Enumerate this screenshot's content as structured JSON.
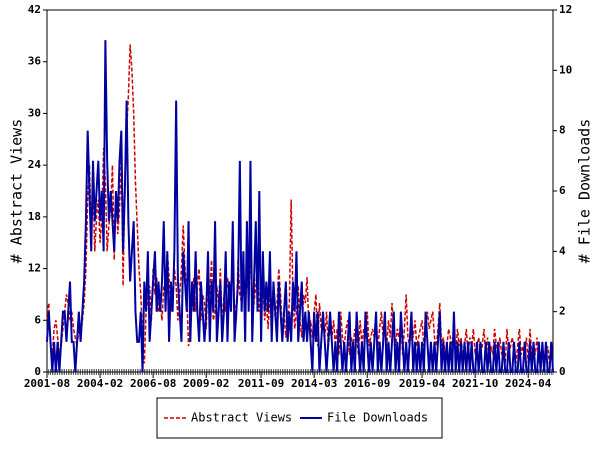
{
  "chart_data": {
    "type": "line",
    "x": [
      "2001-08",
      "2001-09",
      "2001-10",
      "2001-11",
      "2001-12",
      "2002-01",
      "2002-02",
      "2002-03",
      "2002-04",
      "2002-05",
      "2002-06",
      "2002-07",
      "2002-08",
      "2002-09",
      "2002-10",
      "2002-11",
      "2002-12",
      "2003-01",
      "2003-02",
      "2003-03",
      "2003-04",
      "2003-05",
      "2003-06",
      "2003-07",
      "2003-08",
      "2003-09",
      "2003-10",
      "2003-11",
      "2003-12",
      "2004-01",
      "2004-02",
      "2004-03",
      "2004-04",
      "2004-05",
      "2004-06",
      "2004-07",
      "2004-08",
      "2004-09",
      "2004-10",
      "2004-11",
      "2004-12",
      "2005-01",
      "2005-02",
      "2005-03",
      "2005-04",
      "2005-05",
      "2005-06",
      "2005-07",
      "2005-08",
      "2005-09",
      "2005-10",
      "2005-11",
      "2005-12",
      "2006-01",
      "2006-02",
      "2006-03",
      "2006-04",
      "2006-05",
      "2006-06",
      "2006-07",
      "2006-08",
      "2006-09",
      "2006-10",
      "2006-11",
      "2006-12",
      "2007-01",
      "2007-02",
      "2007-03",
      "2007-04",
      "2007-05",
      "2007-06",
      "2007-07",
      "2007-08",
      "2007-09",
      "2007-10",
      "2007-11",
      "2007-12",
      "2008-01",
      "2008-02",
      "2008-03",
      "2008-04",
      "2008-05",
      "2008-06",
      "2008-07",
      "2008-08",
      "2008-09",
      "2008-10",
      "2008-11",
      "2008-12",
      "2009-01",
      "2009-02",
      "2009-03",
      "2009-04",
      "2009-05",
      "2009-06",
      "2009-07",
      "2009-08",
      "2009-09",
      "2009-10",
      "2009-11",
      "2009-12",
      "2010-01",
      "2010-02",
      "2010-03",
      "2010-04",
      "2010-05",
      "2010-06",
      "2010-07",
      "2010-08",
      "2010-09",
      "2010-10",
      "2010-11",
      "2010-12",
      "2011-01",
      "2011-02",
      "2011-03",
      "2011-04",
      "2011-05",
      "2011-06",
      "2011-07",
      "2011-08",
      "2011-09",
      "2011-10",
      "2011-11",
      "2011-12",
      "2012-01",
      "2012-02",
      "2012-03",
      "2012-04",
      "2012-05",
      "2012-06",
      "2012-07",
      "2012-08",
      "2012-09",
      "2012-10",
      "2012-11",
      "2012-12",
      "2013-01",
      "2013-02",
      "2013-03",
      "2013-04",
      "2013-05",
      "2013-06",
      "2013-07",
      "2013-08",
      "2013-09",
      "2013-10",
      "2013-11",
      "2013-12",
      "2014-01",
      "2014-02",
      "2014-03",
      "2014-04",
      "2014-05",
      "2014-06",
      "2014-07",
      "2014-08",
      "2014-09",
      "2014-10",
      "2014-11",
      "2014-12",
      "2015-01",
      "2015-02",
      "2015-03",
      "2015-04",
      "2015-05",
      "2015-06",
      "2015-07",
      "2015-08",
      "2015-09",
      "2015-10",
      "2015-11",
      "2015-12",
      "2016-01",
      "2016-02",
      "2016-03",
      "2016-04",
      "2016-05",
      "2016-06",
      "2016-07",
      "2016-08",
      "2016-09",
      "2016-10",
      "2016-11",
      "2016-12",
      "2017-01",
      "2017-02",
      "2017-03",
      "2017-04",
      "2017-05",
      "2017-06",
      "2017-07",
      "2017-08",
      "2017-09",
      "2017-10",
      "2017-11",
      "2017-12",
      "2018-01",
      "2018-02",
      "2018-03",
      "2018-04",
      "2018-05",
      "2018-06",
      "2018-07",
      "2018-08",
      "2018-09",
      "2018-10",
      "2018-11",
      "2018-12",
      "2019-01",
      "2019-02",
      "2019-03",
      "2019-04",
      "2019-05",
      "2019-06",
      "2019-07",
      "2019-08",
      "2019-09",
      "2019-10",
      "2019-11",
      "2019-12",
      "2020-01",
      "2020-02",
      "2020-03",
      "2020-04",
      "2020-05",
      "2020-06",
      "2020-07",
      "2020-08",
      "2020-09",
      "2020-10",
      "2020-11",
      "2020-12",
      "2021-01",
      "2021-02",
      "2021-03",
      "2021-04",
      "2021-05",
      "2021-06",
      "2021-07",
      "2021-08",
      "2021-09",
      "2021-10",
      "2021-11",
      "2021-12",
      "2022-01",
      "2022-02",
      "2022-03",
      "2022-04",
      "2022-05",
      "2022-06",
      "2022-07",
      "2022-08",
      "2022-09",
      "2022-10",
      "2022-11",
      "2022-12",
      "2023-01",
      "2023-02",
      "2023-03",
      "2023-04",
      "2023-05",
      "2023-06",
      "2023-07",
      "2023-08",
      "2023-09",
      "2023-10",
      "2023-11",
      "2023-12",
      "2024-01",
      "2024-02",
      "2024-03",
      "2024-04",
      "2024-05",
      "2024-06",
      "2024-07",
      "2024-08",
      "2024-09",
      "2024-10",
      "2024-11",
      "2024-12",
      "2025-01",
      "2025-02",
      "2025-03",
      "2025-04",
      "2025-05",
      "2025-06"
    ],
    "series": [
      {
        "name": "Abstract Views",
        "color": "#cc0000",
        "dashed": true,
        "values": [
          6,
          8,
          3,
          2,
          5,
          6,
          4,
          2,
          3,
          5,
          7,
          9,
          8,
          6,
          7,
          5,
          4,
          3,
          5,
          4,
          6,
          8,
          12,
          20,
          24,
          16,
          22,
          14,
          18,
          20,
          15,
          18,
          26,
          22,
          14,
          17,
          19,
          24,
          13,
          21,
          16,
          19,
          25,
          10,
          22,
          28,
          32,
          38,
          35,
          30,
          22,
          17,
          12,
          9,
          4,
          1,
          7,
          8,
          10,
          6,
          12,
          9,
          11,
          7,
          8,
          6,
          10,
          9,
          14,
          11,
          7,
          8,
          12,
          10,
          6,
          9,
          12,
          17,
          12,
          9,
          3,
          5,
          8,
          11,
          7,
          10,
          12,
          6,
          9,
          8,
          5,
          11,
          9,
          13,
          6,
          7,
          10,
          8,
          12,
          5,
          9,
          7,
          11,
          9,
          10,
          12,
          8,
          6,
          13,
          9,
          8,
          10,
          7,
          11,
          9,
          14,
          6,
          8,
          10,
          12,
          7,
          9,
          11,
          6,
          8,
          5,
          9,
          7,
          10,
          6,
          8,
          12,
          9,
          5,
          7,
          4,
          6,
          8,
          20,
          9,
          5,
          7,
          10,
          6,
          4,
          9,
          8,
          11,
          5,
          6,
          4,
          7,
          9,
          3,
          8,
          5,
          6,
          4,
          7,
          3,
          5,
          4,
          6,
          3,
          5,
          2,
          7,
          4,
          3,
          5,
          6,
          2,
          4,
          3,
          5,
          4,
          2,
          6,
          3,
          5,
          4,
          7,
          3,
          4,
          5,
          4,
          6,
          3,
          5,
          7,
          4,
          5,
          3,
          6,
          4,
          8,
          5,
          3,
          5,
          4,
          6,
          2,
          5,
          9,
          4,
          3,
          5,
          4,
          6,
          3,
          4,
          5,
          6,
          3,
          4,
          7,
          5,
          6,
          7,
          4,
          3,
          5,
          8,
          3,
          4,
          2,
          3,
          5,
          4,
          3,
          4,
          2,
          5,
          3,
          4,
          2,
          3,
          5,
          2,
          4,
          3,
          5,
          2,
          3,
          4,
          2,
          3,
          5,
          2,
          4,
          1,
          3,
          2,
          5,
          3,
          2,
          4,
          2,
          3,
          1,
          5,
          2,
          3,
          4,
          2,
          1,
          3,
          5,
          2,
          3,
          2,
          4,
          1,
          5,
          2,
          3,
          2,
          4,
          1,
          2,
          3,
          1,
          2,
          3,
          1,
          2,
          1
        ]
      },
      {
        "name": "File Downloads",
        "color": "#0000a0",
        "axis": "y2",
        "values": [
          1,
          2,
          1,
          0,
          1,
          0,
          1,
          0,
          1,
          2,
          2,
          1,
          2,
          3,
          1,
          1,
          0,
          1,
          2,
          1,
          2,
          3,
          5,
          8,
          6,
          4,
          7,
          5,
          6,
          7,
          5,
          6,
          4,
          11,
          7,
          5,
          6,
          5,
          4,
          6,
          5,
          7,
          8,
          4,
          6,
          9,
          5,
          3,
          4,
          5,
          2,
          1,
          1,
          2,
          0,
          3,
          2,
          4,
          1,
          2,
          3,
          4,
          2,
          3,
          2,
          3,
          5,
          2,
          4,
          1,
          3,
          2,
          4,
          9,
          3,
          2,
          1,
          4,
          3,
          2,
          5,
          1,
          3,
          2,
          4,
          2,
          1,
          3,
          2,
          1,
          2,
          4,
          1,
          3,
          2,
          5,
          1,
          2,
          3,
          1,
          2,
          4,
          1,
          3,
          2,
          5,
          1,
          2,
          3,
          7,
          2,
          4,
          1,
          5,
          2,
          7,
          1,
          3,
          5,
          2,
          6,
          1,
          4,
          2,
          3,
          2,
          4,
          1,
          3,
          2,
          1,
          3,
          2,
          1,
          2,
          3,
          1,
          2,
          1,
          3,
          2,
          4,
          1,
          2,
          3,
          1,
          2,
          1,
          2,
          1,
          0,
          2,
          1,
          2,
          0,
          1,
          2,
          1,
          0,
          1,
          2,
          1,
          0,
          1,
          0,
          2,
          1,
          0,
          1,
          0,
          1,
          2,
          0,
          1,
          0,
          2,
          1,
          0,
          1,
          0,
          2,
          1,
          0,
          1,
          0,
          1,
          2,
          0,
          1,
          0,
          1,
          2,
          0,
          1,
          0,
          1,
          2,
          0,
          1,
          0,
          2,
          1,
          0,
          1,
          0,
          1,
          2,
          0,
          1,
          0,
          1,
          0,
          1,
          0,
          2,
          1,
          0,
          1,
          0,
          1,
          0,
          1,
          2,
          0,
          1,
          0,
          1,
          0,
          1,
          0,
          2,
          0,
          1,
          0,
          1,
          0,
          1,
          0,
          1,
          0,
          1,
          0,
          0,
          1,
          0,
          1,
          0,
          0,
          1,
          0,
          1,
          0,
          0,
          1,
          0,
          1,
          0,
          0,
          1,
          0,
          0,
          1,
          0,
          0,
          1,
          0,
          0,
          1,
          0,
          0,
          1,
          0,
          0,
          1,
          0,
          1,
          0,
          0,
          1,
          0,
          1,
          0,
          1,
          0,
          0,
          1,
          0
        ]
      }
    ],
    "ylabel": "# Abstract Views",
    "y2label": "# File Downloads",
    "ylim": [
      0,
      42
    ],
    "yticks": [
      0,
      6,
      12,
      18,
      24,
      30,
      36,
      42
    ],
    "y2lim": [
      0,
      12
    ],
    "y2ticks": [
      0,
      2,
      4,
      6,
      8,
      10,
      12
    ],
    "xticks": [
      "2001-08",
      "2004-02",
      "2006-08",
      "2009-02",
      "2011-09",
      "2014-03",
      "2016-09",
      "2019-04",
      "2021-10",
      "2024-04"
    ],
    "legend": "bottom"
  }
}
